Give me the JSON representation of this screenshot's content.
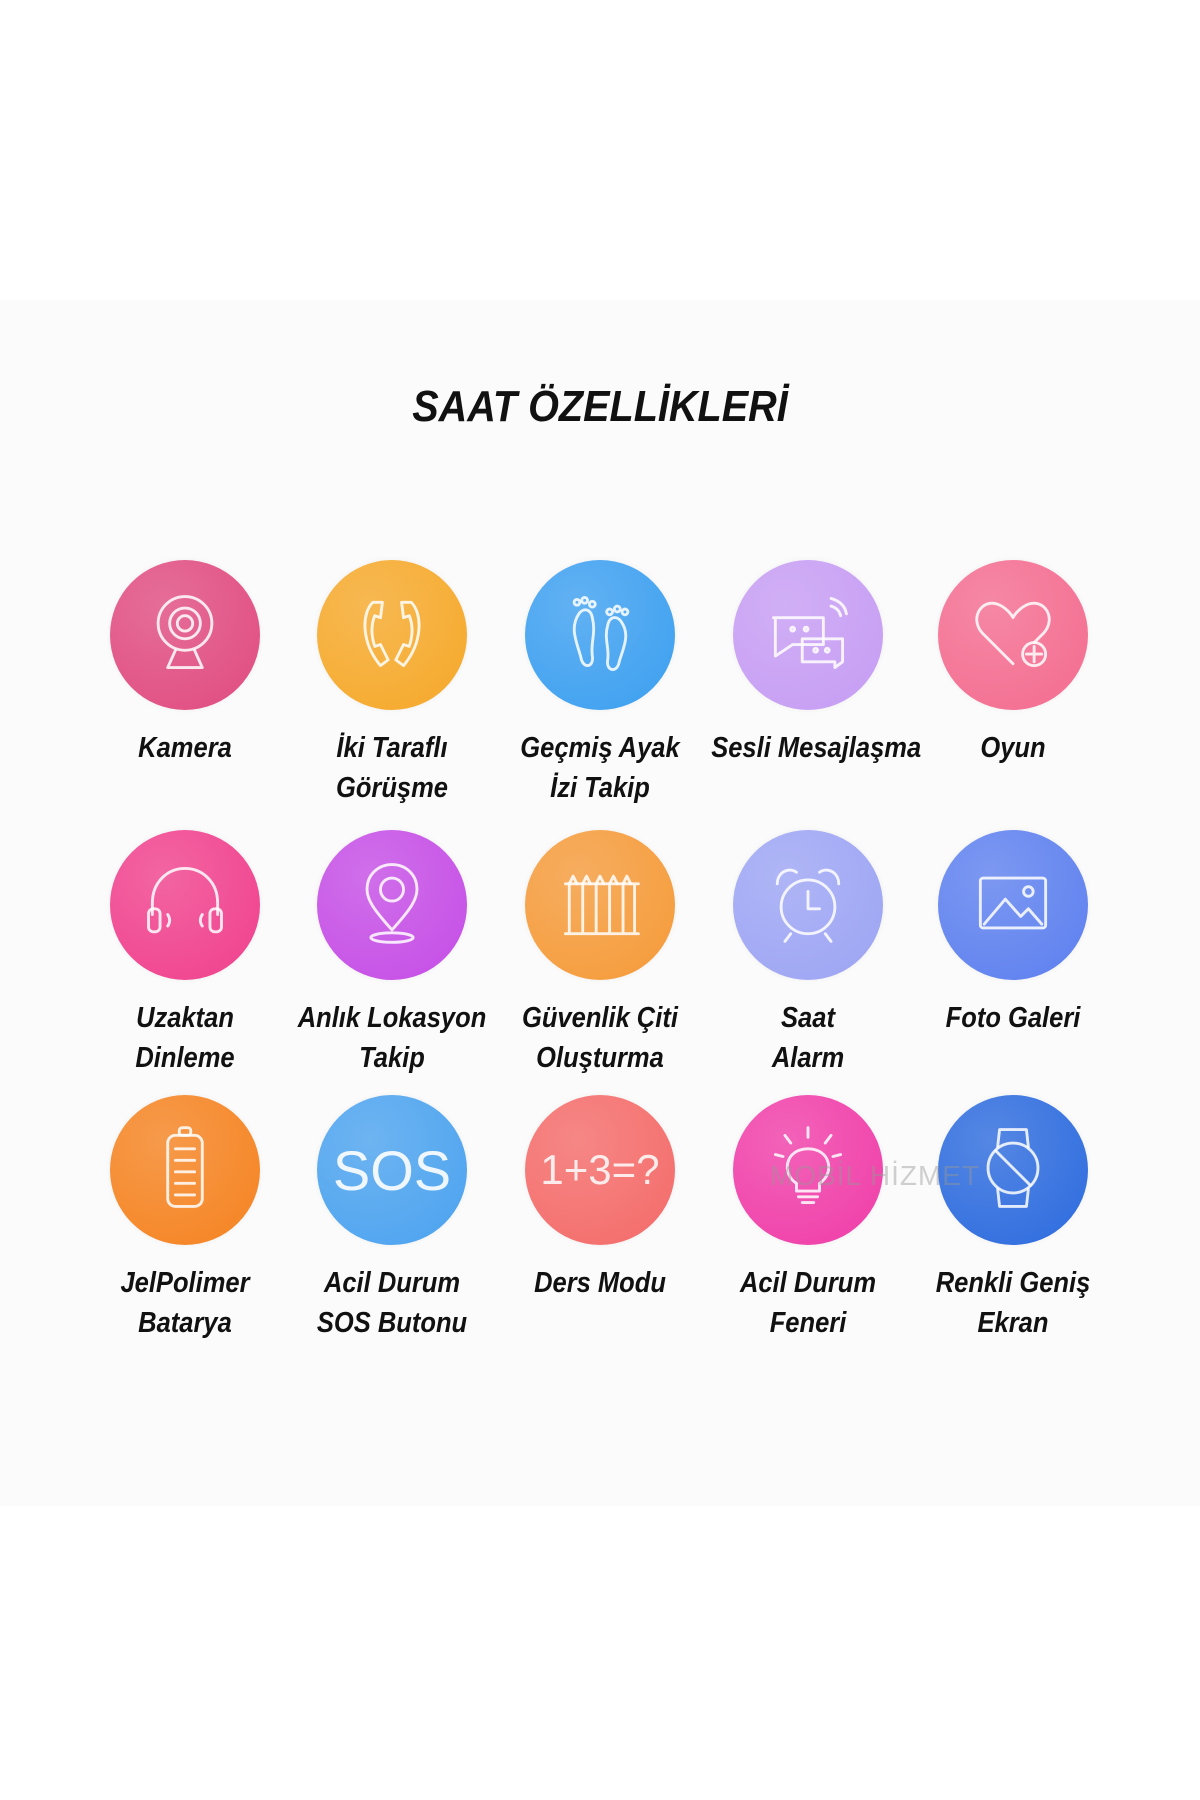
{
  "title": "SAAT ÖZELLİKLERİ",
  "watermark": "MOBİL HİZMET",
  "features": [
    {
      "icon": "webcam-icon",
      "color": "#e04a7f",
      "line1": "Kamera",
      "line2": ""
    },
    {
      "icon": "phone-call-icon",
      "color": "#f6a828",
      "line1": "İki Taraflı",
      "line2": "Görüşme"
    },
    {
      "icon": "footprints-icon",
      "color": "#3b9ff0",
      "line1": "Geçmiş Ayak",
      "line2": "İzi Takip"
    },
    {
      "icon": "chat-bubbles-icon",
      "color": "#c69cf4",
      "line1": "Sesli Mesajlaşma",
      "line2": ""
    },
    {
      "icon": "heart-plus-icon",
      "color": "#f46b8f",
      "line1": "Oyun",
      "line2": ""
    },
    {
      "icon": "headphones-icon",
      "color": "#f03f8c",
      "line1": "Uzaktan",
      "line2": "Dinleme"
    },
    {
      "icon": "location-pin-icon",
      "color": "#c54ce6",
      "line1": "Anlık Lokasyon",
      "line2": "Takip"
    },
    {
      "icon": "fence-icon",
      "color": "#f59a38",
      "line1": "Güvenlik Çiti",
      "line2": "Oluşturma"
    },
    {
      "icon": "alarm-clock-icon",
      "color": "#9ca4f4",
      "line1": "Saat",
      "line2": "Alarm"
    },
    {
      "icon": "image-gallery-icon",
      "color": "#5c7fef",
      "line1": "Foto Galeri",
      "line2": ""
    },
    {
      "icon": "battery-icon",
      "color": "#f5821f",
      "line1": "JelPolimer",
      "line2": "Batarya"
    },
    {
      "icon": "sos-icon",
      "color": "#4aa2ef",
      "line1": "Acil Durum",
      "line2": "SOS Butonu",
      "text": "SOS"
    },
    {
      "icon": "math-icon",
      "color": "#f46a68",
      "line1": "Ders Modu",
      "line2": "",
      "text": "1+3=?"
    },
    {
      "icon": "light-bulb-icon",
      "color": "#f03ca8",
      "line1": "Acil Durum",
      "line2": "Feneri"
    },
    {
      "icon": "smartwatch-icon",
      "color": "#2b6ade",
      "line1": "Renkli Geniş",
      "line2": "Ekran"
    }
  ]
}
